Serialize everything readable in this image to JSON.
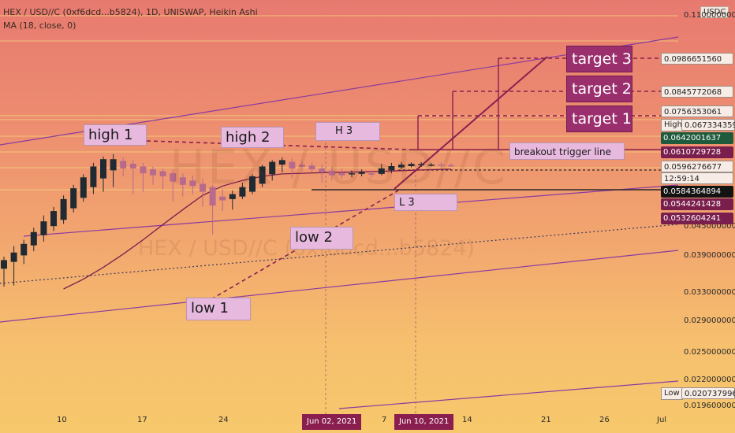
{
  "header": {
    "symbol_line": "HEX / USD//C (0xf6dcd...b5824), 1D, UNISWAP, Heikin Ashi",
    "indicator_line": "MA (18, close, 0)"
  },
  "currency_badge": "USDC",
  "watermark": {
    "symbol": "HEX / USD//C",
    "sub": "HEX / USD//C (0xf6dcd...b5824)"
  },
  "price_axis": {
    "ticks": [
      "0.1100000000",
      "0.0450000000",
      "0.0390000000",
      "0.0330000000",
      "0.0290000000",
      "0.0250000000",
      "0.0220000000",
      "0.0196000000"
    ],
    "tags": [
      {
        "label": "0.0986651560",
        "value": 0.098665156,
        "style": "white"
      },
      {
        "label": "0.0845772068",
        "value": 0.0845772068,
        "style": "white"
      },
      {
        "label": "0.0756353061",
        "value": 0.0756353061,
        "style": "white"
      },
      {
        "label": "0.0673343598",
        "value": 0.0673343598,
        "style": "white"
      },
      {
        "label": "0.0642001637",
        "value": 0.0642001637,
        "style": "green"
      },
      {
        "label": "0.0610729728",
        "value": 0.0610729728,
        "style": "maroon"
      },
      {
        "label": "0.0596276677",
        "value": 0.0596276677,
        "style": "white"
      },
      {
        "label": "12:59:14",
        "value": 0.0585,
        "style": "white"
      },
      {
        "label": "0.0584364894",
        "value": 0.0584364894,
        "style": "black"
      },
      {
        "label": "0.0544241428",
        "value": 0.0544241428,
        "style": "maroon"
      },
      {
        "label": "0.0532604241",
        "value": 0.0532604241,
        "style": "maroon"
      },
      {
        "label": "0.0207379964",
        "value": 0.0207379964,
        "style": "white"
      }
    ],
    "high_label": "High",
    "low_label": "Low"
  },
  "x_axis": {
    "labels": [
      "10",
      "17",
      "24",
      "7",
      "14",
      "21",
      "26",
      "Jul"
    ],
    "badges": [
      "Jun 02, 2021",
      "Jun 10, 2021"
    ]
  },
  "annotations": {
    "high1": "high 1",
    "high2": "high 2",
    "h3": "H 3",
    "low1": "low 1",
    "low2": "low 2",
    "l3": "L 3",
    "target1": "target 1",
    "target2": "target 2",
    "target3": "target 3",
    "breakout": "breakout trigger line"
  },
  "chart_data": {
    "type": "candlestick",
    "style": "Heikin Ashi",
    "scale": "log",
    "ylim": [
      0.0194,
      0.112
    ],
    "candles": [
      {
        "o": 0.0235,
        "h": 0.0262,
        "l": 0.02,
        "c": 0.0254
      },
      {
        "o": 0.025,
        "h": 0.0288,
        "l": 0.0202,
        "c": 0.0272
      },
      {
        "o": 0.0265,
        "h": 0.0305,
        "l": 0.0245,
        "c": 0.0294
      },
      {
        "o": 0.029,
        "h": 0.034,
        "l": 0.0275,
        "c": 0.0327
      },
      {
        "o": 0.0318,
        "h": 0.038,
        "l": 0.03,
        "c": 0.036
      },
      {
        "o": 0.0345,
        "h": 0.041,
        "l": 0.033,
        "c": 0.0395
      },
      {
        "o": 0.0365,
        "h": 0.0455,
        "l": 0.0352,
        "c": 0.044
      },
      {
        "o": 0.0405,
        "h": 0.05,
        "l": 0.039,
        "c": 0.0485
      },
      {
        "o": 0.0445,
        "h": 0.055,
        "l": 0.043,
        "c": 0.0535
      },
      {
        "o": 0.049,
        "h": 0.061,
        "l": 0.046,
        "c": 0.059
      },
      {
        "o": 0.053,
        "h": 0.0645,
        "l": 0.047,
        "c": 0.063
      },
      {
        "o": 0.057,
        "h": 0.066,
        "l": 0.049,
        "c": 0.063
      },
      {
        "o": 0.062,
        "h": 0.064,
        "l": 0.054,
        "c": 0.058
      },
      {
        "o": 0.0605,
        "h": 0.0625,
        "l": 0.046,
        "c": 0.058
      },
      {
        "o": 0.059,
        "h": 0.061,
        "l": 0.047,
        "c": 0.0555
      },
      {
        "o": 0.0575,
        "h": 0.059,
        "l": 0.05,
        "c": 0.0545
      },
      {
        "o": 0.0565,
        "h": 0.058,
        "l": 0.048,
        "c": 0.054
      },
      {
        "o": 0.0555,
        "h": 0.0575,
        "l": 0.043,
        "c": 0.0515
      },
      {
        "o": 0.0535,
        "h": 0.0555,
        "l": 0.045,
        "c": 0.05
      },
      {
        "o": 0.052,
        "h": 0.0545,
        "l": 0.046,
        "c": 0.0495
      },
      {
        "o": 0.0505,
        "h": 0.053,
        "l": 0.041,
        "c": 0.047
      },
      {
        "o": 0.049,
        "h": 0.05,
        "l": 0.032,
        "c": 0.0415
      },
      {
        "o": 0.045,
        "h": 0.048,
        "l": 0.0395,
        "c": 0.0435
      },
      {
        "o": 0.044,
        "h": 0.0475,
        "l": 0.04,
        "c": 0.046
      },
      {
        "o": 0.045,
        "h": 0.051,
        "l": 0.044,
        "c": 0.049
      },
      {
        "o": 0.047,
        "h": 0.055,
        "l": 0.046,
        "c": 0.054
      },
      {
        "o": 0.0505,
        "h": 0.06,
        "l": 0.049,
        "c": 0.059
      },
      {
        "o": 0.055,
        "h": 0.0625,
        "l": 0.052,
        "c": 0.0615
      },
      {
        "o": 0.06,
        "h": 0.064,
        "l": 0.056,
        "c": 0.0625
      },
      {
        "o": 0.0615,
        "h": 0.0635,
        "l": 0.053,
        "c": 0.058
      },
      {
        "o": 0.06,
        "h": 0.0618,
        "l": 0.0565,
        "c": 0.0588
      },
      {
        "o": 0.0595,
        "h": 0.0612,
        "l": 0.056,
        "c": 0.0575
      },
      {
        "o": 0.058,
        "h": 0.06,
        "l": 0.051,
        "c": 0.056
      },
      {
        "o": 0.0568,
        "h": 0.059,
        "l": 0.052,
        "c": 0.0545
      },
      {
        "o": 0.0556,
        "h": 0.058,
        "l": 0.053,
        "c": 0.0545
      },
      {
        "o": 0.055,
        "h": 0.057,
        "l": 0.0535,
        "c": 0.0555
      },
      {
        "o": 0.0552,
        "h": 0.0575,
        "l": 0.054,
        "c": 0.056
      },
      {
        "o": 0.0555,
        "h": 0.057,
        "l": 0.0535,
        "c": 0.0548
      },
      {
        "o": 0.0552,
        "h": 0.0605,
        "l": 0.0545,
        "c": 0.058
      },
      {
        "o": 0.057,
        "h": 0.061,
        "l": 0.0555,
        "c": 0.0592
      },
      {
        "o": 0.0585,
        "h": 0.0615,
        "l": 0.0575,
        "c": 0.06
      },
      {
        "o": 0.0592,
        "h": 0.0612,
        "l": 0.0585,
        "c": 0.0604
      },
      {
        "o": 0.0598,
        "h": 0.0614,
        "l": 0.0588,
        "c": 0.0603
      },
      {
        "o": 0.06,
        "h": 0.061,
        "l": 0.059,
        "c": 0.06
      },
      {
        "o": 0.06,
        "h": 0.0612,
        "l": 0.0575,
        "c": 0.0598
      },
      {
        "o": 0.0597,
        "h": 0.0608,
        "l": 0.0588,
        "c": 0.0596
      }
    ],
    "ma": {
      "name": "MA (18, close, 0)",
      "values": [
        [
          6,
          0.0196
        ],
        [
          8,
          0.0214
        ],
        [
          10,
          0.0238
        ],
        [
          12,
          0.0268
        ],
        [
          14,
          0.0305
        ],
        [
          16,
          0.035
        ],
        [
          18,
          0.04
        ],
        [
          20,
          0.0455
        ],
        [
          22,
          0.0495
        ],
        [
          24,
          0.052
        ],
        [
          26,
          0.054
        ],
        [
          28,
          0.0552
        ],
        [
          30,
          0.0555
        ],
        [
          32,
          0.0558
        ],
        [
          34,
          0.056
        ],
        [
          36,
          0.0562
        ],
        [
          38,
          0.0565
        ],
        [
          40,
          0.0568
        ],
        [
          42,
          0.0572
        ],
        [
          44,
          0.0575
        ],
        [
          45,
          0.0576
        ]
      ]
    }
  }
}
